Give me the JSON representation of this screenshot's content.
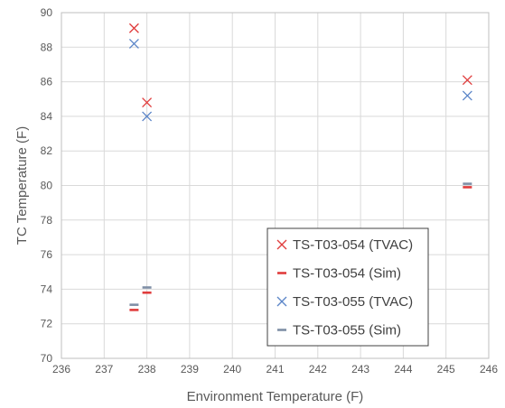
{
  "chart_data": {
    "type": "scatter",
    "title": "",
    "xlabel": "Environment Temperature (F)",
    "ylabel": "TC Temperature (F)",
    "xlim": [
      236,
      246
    ],
    "ylim": [
      70,
      90
    ],
    "x_ticks": [
      "236",
      "237",
      "238",
      "239",
      "240",
      "241",
      "242",
      "243",
      "244",
      "245",
      "246"
    ],
    "y_ticks": [
      "70",
      "72",
      "74",
      "76",
      "78",
      "80",
      "82",
      "84",
      "86",
      "88",
      "90"
    ],
    "grid": true,
    "legend_position": "bottom-right",
    "series": [
      {
        "name": "TS-T03-054 (TVAC)",
        "marker": "x",
        "color": "#e03c3c",
        "points": [
          {
            "x": 237.7,
            "y": 89.1
          },
          {
            "x": 238.0,
            "y": 84.8
          },
          {
            "x": 245.5,
            "y": 86.1
          }
        ]
      },
      {
        "name": "TS-T03-054 (Sim)",
        "marker": "dash",
        "color": "#e03c3c",
        "points": [
          {
            "x": 237.7,
            "y": 72.8
          },
          {
            "x": 238.0,
            "y": 73.8
          },
          {
            "x": 245.5,
            "y": 79.9
          }
        ]
      },
      {
        "name": "TS-T03-055 (TVAC)",
        "marker": "x",
        "color": "#5b85c8",
        "points": [
          {
            "x": 237.7,
            "y": 88.2
          },
          {
            "x": 238.0,
            "y": 84.0
          },
          {
            "x": 245.5,
            "y": 85.2
          }
        ]
      },
      {
        "name": "TS-T03-055 (Sim)",
        "marker": "dash",
        "color": "#7f8fa6",
        "points": [
          {
            "x": 237.7,
            "y": 73.1
          },
          {
            "x": 238.0,
            "y": 74.1
          },
          {
            "x": 245.5,
            "y": 80.1
          }
        ]
      }
    ]
  }
}
